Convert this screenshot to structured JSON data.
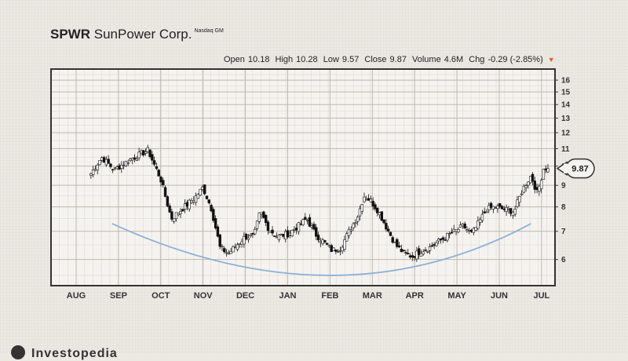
{
  "header": {
    "ticker": "SPWR",
    "company": "SunPower Corp.",
    "exchange": "Nasdaq GM"
  },
  "stats": {
    "open_label": "Open",
    "open": "10.18",
    "high_label": "High",
    "high": "10.28",
    "low_label": "Low",
    "low": "9.57",
    "close_label": "Close",
    "close": "9.87",
    "volume_label": "Volume",
    "volume": "4.6M",
    "chg_label": "Chg",
    "chg": "-0.29 (-2.85%)"
  },
  "footer": {
    "brand": "Investopedia"
  },
  "chart_data": {
    "type": "candlestick",
    "y_scale": "log",
    "ylim": [
      5.2,
      17
    ],
    "grid": true,
    "x_ticks": [
      "AUG",
      "SEP",
      "OCT",
      "NOV",
      "DEC",
      "JAN",
      "FEB",
      "MAR",
      "APR",
      "MAY",
      "JUN",
      "JUL"
    ],
    "y_ticks": [
      6,
      7,
      8,
      9,
      10,
      11,
      12,
      13,
      14,
      15,
      16
    ],
    "last_price_label": "9.87",
    "colors": {
      "up": "#ffffff",
      "down": "#111111",
      "arc": "#8fb0d8",
      "frame": "#333333"
    },
    "closes": [
      {
        "t": 0.35,
        "v": 9.6
      },
      {
        "t": 0.6,
        "v": 10.5
      },
      {
        "t": 0.9,
        "v": 9.8
      },
      {
        "t": 1.3,
        "v": 10.4
      },
      {
        "t": 1.7,
        "v": 10.9
      },
      {
        "t": 2.0,
        "v": 9.3
      },
      {
        "t": 2.25,
        "v": 7.5
      },
      {
        "t": 2.5,
        "v": 7.9
      },
      {
        "t": 2.8,
        "v": 8.4
      },
      {
        "t": 3.0,
        "v": 8.9
      },
      {
        "t": 3.2,
        "v": 7.9
      },
      {
        "t": 3.4,
        "v": 6.4
      },
      {
        "t": 3.6,
        "v": 6.2
      },
      {
        "t": 3.8,
        "v": 6.5
      },
      {
        "t": 4.0,
        "v": 6.8
      },
      {
        "t": 4.2,
        "v": 6.8
      },
      {
        "t": 4.35,
        "v": 7.8
      },
      {
        "t": 4.55,
        "v": 7.1
      },
      {
        "t": 4.75,
        "v": 6.8
      },
      {
        "t": 5.0,
        "v": 6.9
      },
      {
        "t": 5.25,
        "v": 7.2
      },
      {
        "t": 5.45,
        "v": 7.5
      },
      {
        "t": 5.65,
        "v": 6.9
      },
      {
        "t": 5.85,
        "v": 6.6
      },
      {
        "t": 6.05,
        "v": 6.3
      },
      {
        "t": 6.25,
        "v": 6.4
      },
      {
        "t": 6.45,
        "v": 7.0
      },
      {
        "t": 6.65,
        "v": 7.6
      },
      {
        "t": 6.8,
        "v": 8.5
      },
      {
        "t": 6.95,
        "v": 8.3
      },
      {
        "t": 7.15,
        "v": 7.8
      },
      {
        "t": 7.35,
        "v": 7.1
      },
      {
        "t": 7.55,
        "v": 6.5
      },
      {
        "t": 7.75,
        "v": 6.2
      },
      {
        "t": 7.95,
        "v": 6.1
      },
      {
        "t": 8.15,
        "v": 6.3
      },
      {
        "t": 8.35,
        "v": 6.4
      },
      {
        "t": 8.55,
        "v": 6.6
      },
      {
        "t": 8.75,
        "v": 6.8
      },
      {
        "t": 8.95,
        "v": 7.0
      },
      {
        "t": 9.15,
        "v": 7.2
      },
      {
        "t": 9.35,
        "v": 6.9
      },
      {
        "t": 9.5,
        "v": 7.3
      },
      {
        "t": 9.7,
        "v": 7.9
      },
      {
        "t": 9.9,
        "v": 8.0
      },
      {
        "t": 10.1,
        "v": 7.9
      },
      {
        "t": 10.35,
        "v": 7.8
      },
      {
        "t": 10.55,
        "v": 8.8
      },
      {
        "t": 10.75,
        "v": 9.5
      },
      {
        "t": 10.9,
        "v": 8.6
      },
      {
        "t": 11.05,
        "v": 9.9
      },
      {
        "t": 11.15,
        "v": 9.87
      }
    ],
    "u_curve": [
      {
        "t": 0.85,
        "v": 7.3
      },
      {
        "t": 6.0,
        "v": 5.5
      },
      {
        "t": 10.75,
        "v": 7.3
      }
    ]
  }
}
